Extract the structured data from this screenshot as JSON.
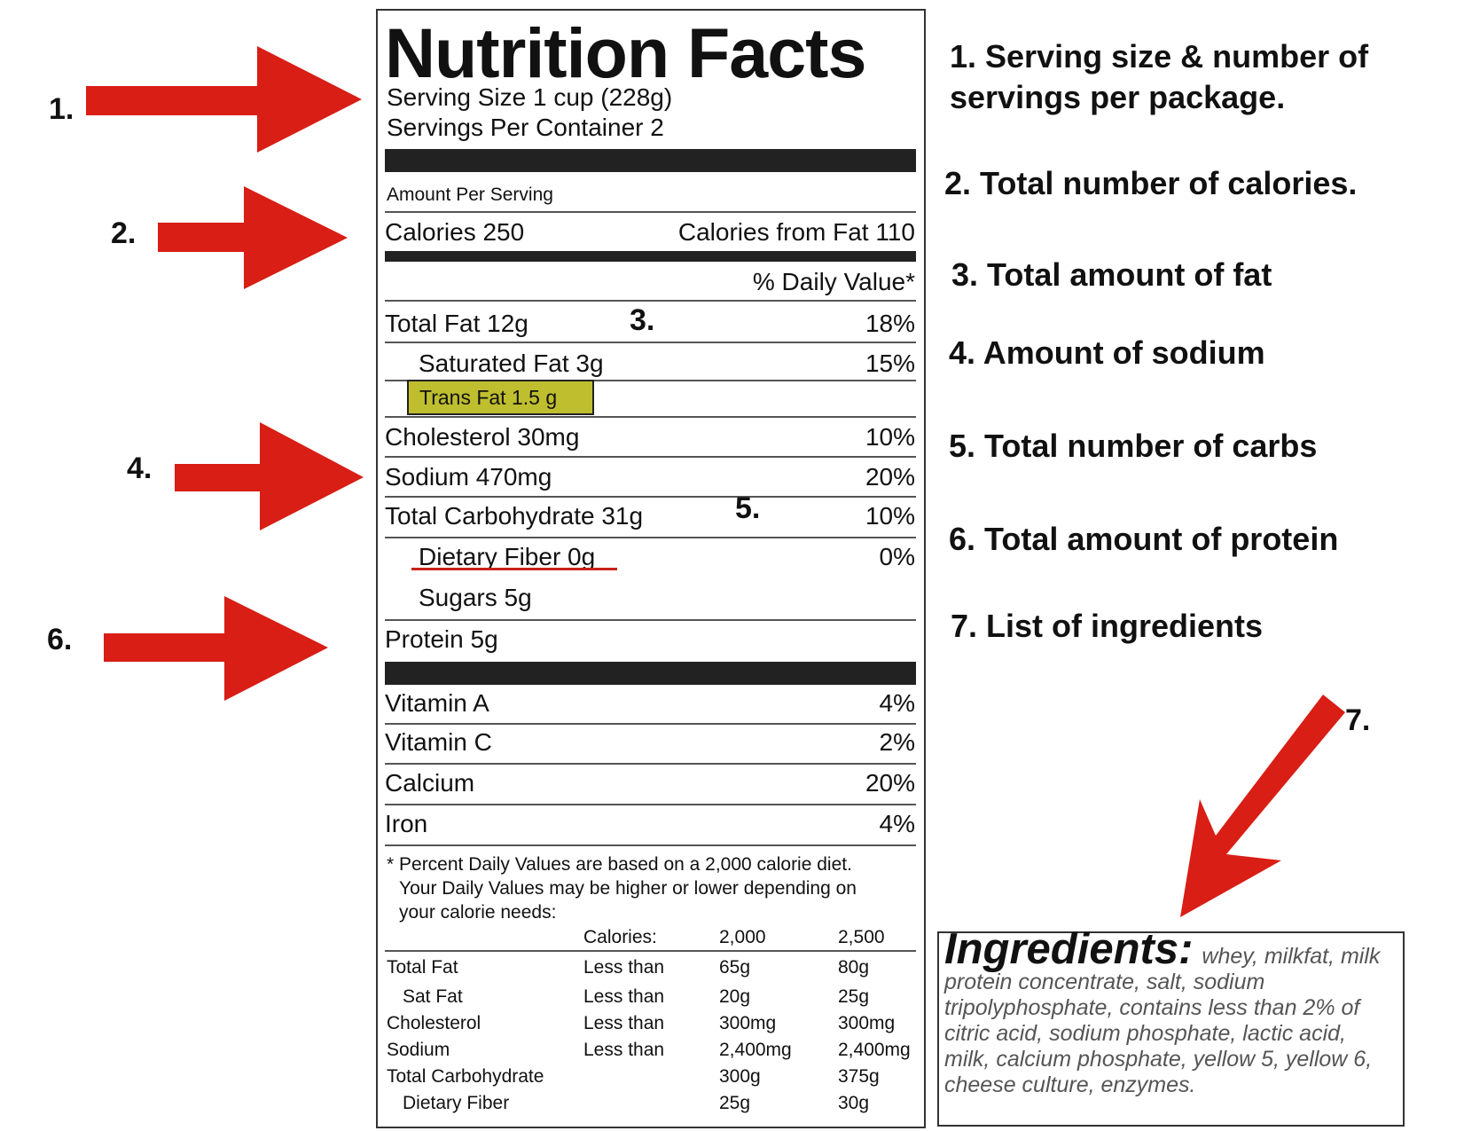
{
  "label": {
    "title": "Nutrition Facts",
    "serving_size": "Serving Size 1 cup (228g)",
    "servings_per_container": "Servings Per Container 2",
    "amount_per_serving": "Amount Per Serving",
    "calories": "Calories 250",
    "calories_from_fat": "Calories from Fat 110",
    "daily_value_header": "% Daily Value*",
    "nutrients": [
      {
        "name": "Total Fat 12g",
        "dv": "18%"
      },
      {
        "name": "Saturated Fat 3g",
        "dv": "15%"
      },
      {
        "name": "Trans Fat 1.5 g",
        "dv": ""
      },
      {
        "name": "Cholesterol 30mg",
        "dv": "10%"
      },
      {
        "name": "Sodium 470mg",
        "dv": "20%"
      },
      {
        "name": "Total Carbohydrate 31g",
        "dv": "10%"
      },
      {
        "name": "Dietary Fiber 0g",
        "dv": "0%"
      },
      {
        "name": "Sugars 5g",
        "dv": ""
      },
      {
        "name": "Protein 5g",
        "dv": ""
      }
    ],
    "vitamins": [
      {
        "name": "Vitamin A",
        "dv": "4%"
      },
      {
        "name": "Vitamin C",
        "dv": "2%"
      },
      {
        "name": "Calcium",
        "dv": "20%"
      },
      {
        "name": "Iron",
        "dv": "4%"
      }
    ],
    "footnote": [
      "* Percent Daily Values are based on a 2,000 calorie diet.",
      "Your Daily Values may be higher or lower depending on",
      "your calorie needs:"
    ],
    "table": {
      "header": [
        "",
        "Calories:",
        "2,000",
        "2,500"
      ],
      "rows": [
        [
          "Total Fat",
          "Less than",
          "65g",
          "80g"
        ],
        [
          "Sat Fat",
          "Less than",
          "20g",
          "25g"
        ],
        [
          "Cholesterol",
          "Less than",
          "300mg",
          "300mg"
        ],
        [
          "Sodium",
          "Less than",
          "2,400mg",
          "2,400mg"
        ],
        [
          "Total Carbohydrate",
          "",
          "300g",
          "375g"
        ],
        [
          "Dietary Fiber",
          "",
          "25g",
          "30g"
        ]
      ]
    }
  },
  "annotations": [
    {
      "num": "1.",
      "text": [
        "1. Serving size & number of",
        "servings per package."
      ]
    },
    {
      "num": "2.",
      "text": [
        "2. Total number of calories."
      ]
    },
    {
      "num": "3.",
      "text": [
        "3. Total amount of fat"
      ]
    },
    {
      "num": "4.",
      "text": [
        "4. Amount of sodium"
      ]
    },
    {
      "num": "5.",
      "text": [
        "5. Total number of carbs"
      ]
    },
    {
      "num": "6.",
      "text": [
        "6. Total amount of protein"
      ]
    },
    {
      "num": "7.",
      "text": [
        "7. List of ingredients"
      ]
    }
  ],
  "ingredients": {
    "heading": "Ingredients:",
    "text": "whey, milkfat, milk protein concentrate, salt, sodium tripolyphosphate, contains less than 2% of citric acid, sodium phosphate, lactic acid, milk, calcium phosphate, yellow 5, yellow 6, cheese culture, enzymes."
  },
  "colors": {
    "arrow": "#d81e15",
    "trans_fat_highlight": "#bfbe2f",
    "bar": "#222222"
  }
}
